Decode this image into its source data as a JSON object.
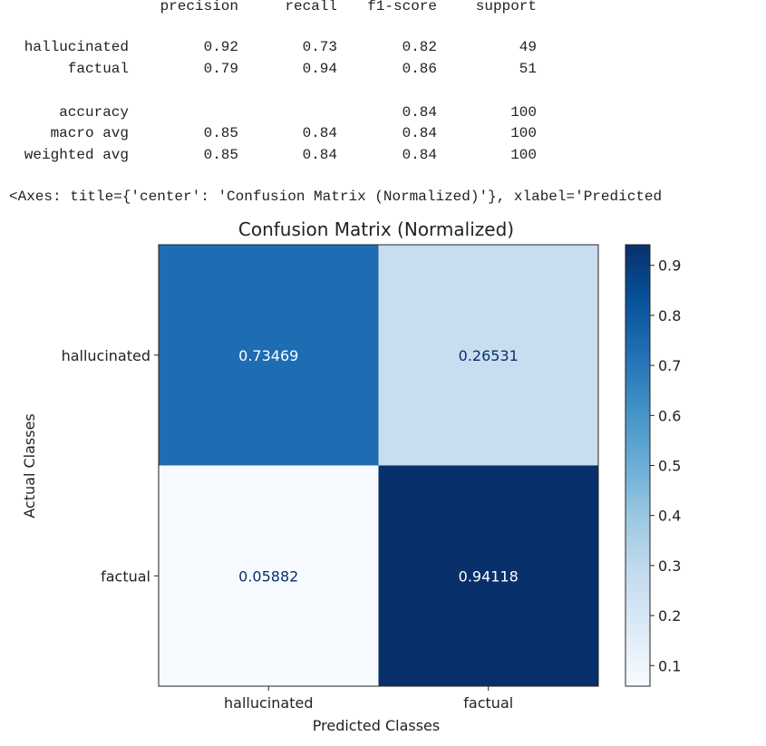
{
  "report": {
    "headers": [
      "precision",
      "recall",
      "f1-score",
      "support"
    ],
    "rows": [
      {
        "label": "hallucinated",
        "values": [
          "0.92",
          "0.73",
          "0.82",
          "49"
        ]
      },
      {
        "label": "factual",
        "values": [
          "0.79",
          "0.94",
          "0.86",
          "51"
        ]
      },
      {
        "label": "accuracy",
        "values": [
          "",
          "",
          "0.84",
          "100"
        ]
      },
      {
        "label": "macro avg",
        "values": [
          "0.85",
          "0.84",
          "0.84",
          "100"
        ]
      },
      {
        "label": "weighted avg",
        "values": [
          "0.85",
          "0.84",
          "0.84",
          "100"
        ]
      }
    ]
  },
  "axes_repr": "<Axes: title={'center': 'Confusion Matrix (Normalized)'}, xlabel='Predicted",
  "chart_data": {
    "type": "heatmap",
    "title": "Confusion Matrix (Normalized)",
    "xlabel": "Predicted Classes",
    "ylabel": "Actual Classes",
    "x_categories": [
      "hallucinated",
      "factual"
    ],
    "y_categories": [
      "hallucinated",
      "factual"
    ],
    "values": [
      [
        0.73469,
        0.26531
      ],
      [
        0.05882,
        0.94118
      ]
    ],
    "value_labels": [
      [
        "0.73469",
        "0.26531"
      ],
      [
        "0.05882",
        "0.94118"
      ]
    ],
    "colormap": "Blues",
    "colorbar": {
      "range": [
        0.05882,
        0.94118
      ],
      "ticks": [
        "0.1",
        "0.2",
        "0.3",
        "0.4",
        "0.5",
        "0.6",
        "0.7",
        "0.8",
        "0.9"
      ]
    }
  }
}
